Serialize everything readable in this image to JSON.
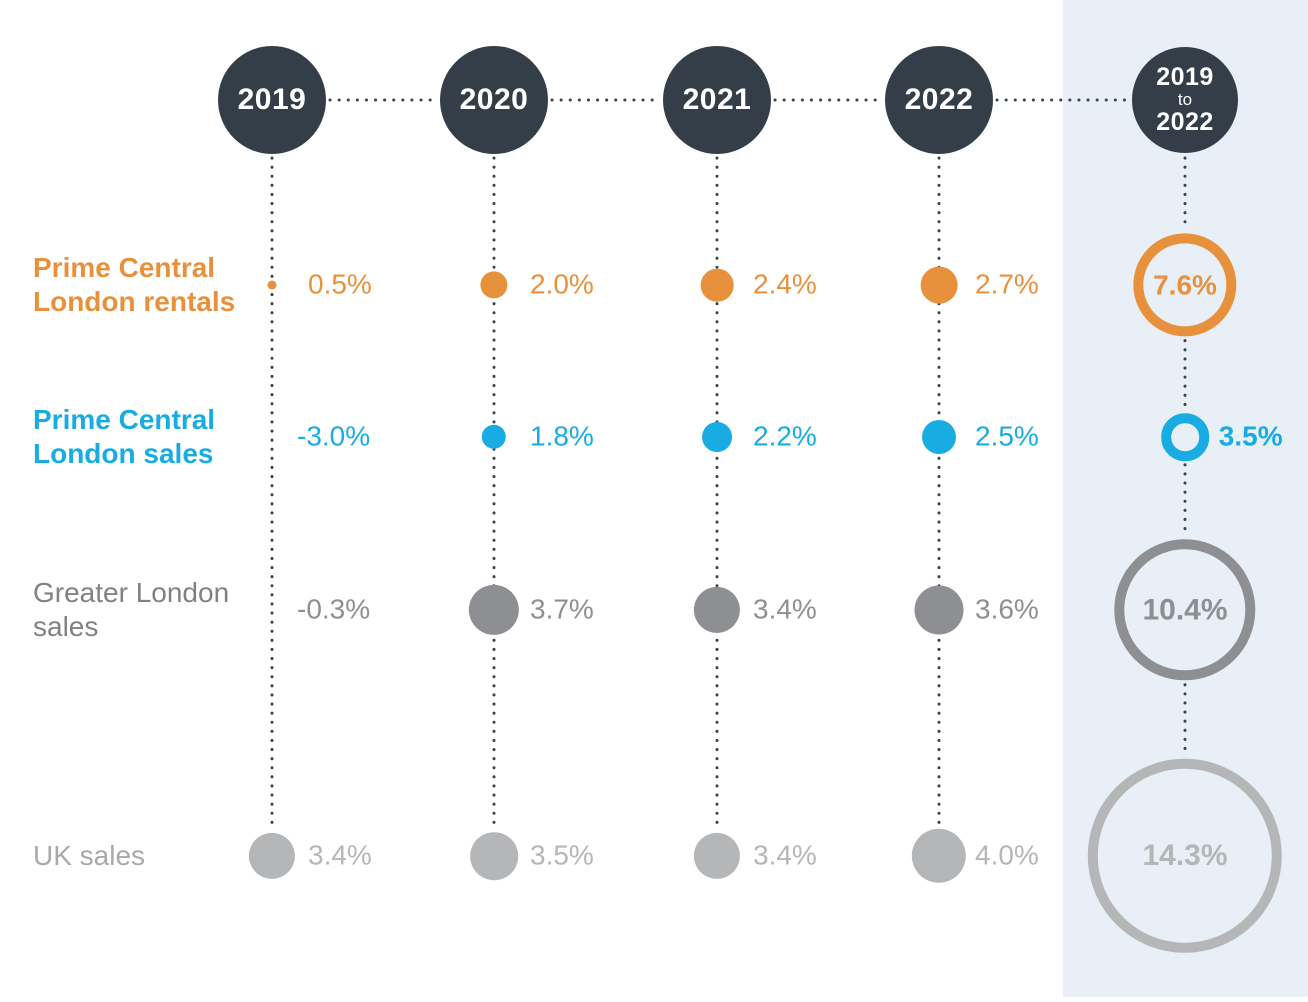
{
  "colors": {
    "background": "#ffffff",
    "summary_panel": "#e8eff6",
    "year_node": "#333e48",
    "year_node_text": "#ffffff",
    "connector": "#39434c",
    "rentals_orange": "#e8913c",
    "sales_blue": "#19ace2",
    "greater_london_gray": "#8d8f92",
    "uk_sales_gray": "#b4b6b8"
  },
  "header": {
    "years": [
      "2019",
      "2020",
      "2021",
      "2022"
    ],
    "summary": [
      "2019",
      "to",
      "2022"
    ]
  },
  "chart_data": {
    "type": "scatter",
    "subtype": "proportional-dot-matrix",
    "title": "",
    "columns": [
      "2019",
      "2020",
      "2021",
      "2022"
    ],
    "summary_column": "2019 to 2022",
    "unit": "%",
    "legend_position": "left-row-labels",
    "series": [
      {
        "name": "Prime Central London rentals",
        "label_lines": [
          "Prime Central",
          "London rentals"
        ],
        "color": "#e8913c",
        "label_color": "#e8913c",
        "bold_label": true,
        "values": [
          0.5,
          2.0,
          2.4,
          2.7
        ],
        "value_labels": [
          "0.5%",
          "2.0%",
          "2.4%",
          "2.7%"
        ],
        "cumulative_value": 7.6,
        "cumulative_label": "7.6%",
        "cumulative_label_position": "inside"
      },
      {
        "name": "Prime Central London sales",
        "label_lines": [
          "Prime Central",
          "London sales"
        ],
        "color": "#19ace2",
        "label_color": "#19ace2",
        "bold_label": true,
        "values": [
          -3.0,
          1.8,
          2.2,
          2.5
        ],
        "value_labels": [
          "-3.0%",
          "1.8%",
          "2.2%",
          "2.5%"
        ],
        "cumulative_value": 3.5,
        "cumulative_label": "3.5%",
        "cumulative_label_position": "outside"
      },
      {
        "name": "Greater London sales",
        "label_lines": [
          "Greater London",
          "sales"
        ],
        "color": "#8d8f92",
        "label_color": "#7f8285",
        "bold_label": false,
        "values": [
          -0.3,
          3.7,
          3.4,
          3.6
        ],
        "value_labels": [
          "-0.3%",
          "3.7%",
          "3.4%",
          "3.6%"
        ],
        "cumulative_value": 10.4,
        "cumulative_label": "10.4%",
        "cumulative_label_position": "inside"
      },
      {
        "name": "UK sales",
        "label_lines": [
          "UK sales"
        ],
        "color": "#b4b6b8",
        "label_color": "#a7a9ac",
        "bold_label": false,
        "values": [
          3.4,
          3.5,
          3.4,
          4.0
        ],
        "value_labels": [
          "3.4%",
          "3.5%",
          "3.4%",
          "4.0%"
        ],
        "cumulative_value": 14.3,
        "cumulative_label": "14.3%",
        "cumulative_label_position": "inside"
      }
    ]
  }
}
